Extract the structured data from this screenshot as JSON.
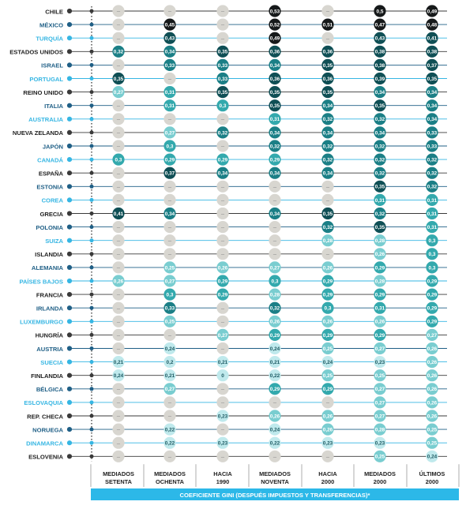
{
  "colors": {
    "dark_blue": "#1f5f86",
    "cyan": "#36b6e3",
    "gray_marker": "#3a3a3a",
    "empty_dot": "#d8d6d0",
    "bin_very_dark": "#16191a",
    "bin_dark": "#0f4f55",
    "bin_mid": "#1b7f86",
    "bin_teal": "#33a9ad",
    "bin_light": "#79cdd0",
    "bin_pale": "#bfe9ec",
    "empty_glyph": "#8a8a8a",
    "caption_bg": "#2cb8e8"
  },
  "chart_data": {
    "type": "dot_matrix",
    "caption": "COEFICIENTE GINI (DESPUÉS IMPUESTOS Y TRANSFERENCIAS)*",
    "empty_symbol": "–",
    "periods": [
      [
        "MEDIADOS",
        "SETENTA"
      ],
      [
        "MEDIADOS",
        "OCHENTA"
      ],
      [
        "HACIA",
        "1990"
      ],
      [
        "MEDIADOS",
        "NOVENTA"
      ],
      [
        "HACIA",
        "2000"
      ],
      [
        "MEDIADOS",
        "2000"
      ],
      [
        "ÚLTIMOS",
        "2000"
      ]
    ],
    "rows": [
      {
        "country": "CHILE",
        "marker": "gray",
        "values": [
          null,
          null,
          null,
          "0,53",
          null,
          "0,5",
          "0,49"
        ]
      },
      {
        "country": "MÉXICO",
        "marker": "dark_blue",
        "values": [
          null,
          "0,45",
          null,
          "0,52",
          "0,51",
          "0,47",
          "0,48"
        ]
      },
      {
        "country": "TURQUÍA",
        "marker": "cyan",
        "values": [
          null,
          "0,43",
          null,
          "0,49",
          null,
          "0,43",
          "0,41"
        ]
      },
      {
        "country": "ESTADOS UNIDOS",
        "marker": "gray",
        "values": [
          "0,32",
          "0,34",
          "0,35",
          "0,36",
          "0,36",
          "0,38",
          "0,38"
        ]
      },
      {
        "country": "ISRAEL",
        "marker": "dark_blue",
        "values": [
          null,
          "0,33",
          "0,33",
          "0,34",
          "0,35",
          "0,38",
          "0,37"
        ]
      },
      {
        "country": "PORTUGAL",
        "marker": "cyan",
        "values": [
          "0,35",
          null,
          "0,33",
          "0,36",
          "0,36",
          "0,39",
          "0,35"
        ]
      },
      {
        "country": "REINO UNIDO",
        "marker": "gray",
        "values": [
          "0,27",
          "0,31",
          "0,35",
          "0,35",
          "0,35",
          "0,34",
          "0,34"
        ]
      },
      {
        "country": "ITALIA",
        "marker": "dark_blue",
        "values": [
          null,
          "0,31",
          "0,3",
          "0,35",
          "0,34",
          "0,35",
          "0,34"
        ]
      },
      {
        "country": "AUSTRALIA",
        "marker": "cyan",
        "values": [
          null,
          null,
          null,
          "0,31",
          "0,32",
          "0,32",
          "0,34"
        ]
      },
      {
        "country": "NUEVA ZELANDA",
        "marker": "gray",
        "values": [
          null,
          "0,27",
          "0,32",
          "0,34",
          "0,34",
          "0,34",
          "0,33"
        ]
      },
      {
        "country": "JAPÓN",
        "marker": "dark_blue",
        "values": [
          null,
          "0,3",
          null,
          "0,32",
          "0,32",
          "0,32",
          "0,33"
        ]
      },
      {
        "country": "CANADÁ",
        "marker": "cyan",
        "values": [
          "0,3",
          "0,29",
          "0,29",
          "0,29",
          "0,32",
          "0,32",
          "0,32"
        ]
      },
      {
        "country": "ESPAÑA",
        "marker": "gray",
        "values": [
          null,
          "0,37",
          "0,34",
          "0,34",
          "0,34",
          "0,32",
          "0,32"
        ]
      },
      {
        "country": "ESTONIA",
        "marker": "dark_blue",
        "values": [
          null,
          null,
          null,
          null,
          null,
          "0,35",
          "0,32"
        ]
      },
      {
        "country": "COREA",
        "marker": "cyan",
        "values": [
          null,
          null,
          null,
          null,
          null,
          "0,31",
          "0,31"
        ]
      },
      {
        "country": "GRECIA",
        "marker": "gray",
        "values": [
          "0,41",
          "0,34",
          null,
          "0,34",
          "0,35",
          "0,32",
          "0,31"
        ]
      },
      {
        "country": "POLONIA",
        "marker": "dark_blue",
        "values": [
          null,
          null,
          null,
          null,
          "0,32",
          "0,35",
          "0,31"
        ]
      },
      {
        "country": "SUIZA",
        "marker": "cyan",
        "values": [
          null,
          null,
          null,
          null,
          "0,28",
          "0,28",
          "0,3"
        ]
      },
      {
        "country": "ISLANDIA",
        "marker": "gray",
        "values": [
          null,
          null,
          null,
          null,
          null,
          "0,26",
          "0,3"
        ]
      },
      {
        "country": "ALEMANIA",
        "marker": "dark_blue",
        "values": [
          null,
          "0,25",
          "0,26",
          "0,27",
          "0,26",
          "0,29",
          "0,3"
        ]
      },
      {
        "country": "PAÍSES BAJOS",
        "marker": "cyan",
        "values": [
          "0,26",
          "0,27",
          "0,29",
          "0,3",
          "0,29",
          "0,28",
          "0,29"
        ]
      },
      {
        "country": "FRANCIA",
        "marker": "gray",
        "values": [
          null,
          "0,3",
          "0,29",
          "0,28",
          "0,29",
          "0,29",
          "0,29"
        ]
      },
      {
        "country": "IRLANDA",
        "marker": "dark_blue",
        "values": [
          null,
          "0,33",
          null,
          "0,32",
          "0,3",
          "0,31",
          "0,29"
        ]
      },
      {
        "country": "LUXEMBURGO",
        "marker": "cyan",
        "values": [
          null,
          "0,25",
          null,
          "0,26",
          "0,26",
          "0,26",
          "0,29"
        ]
      },
      {
        "country": "HUNGRÍA",
        "marker": "gray",
        "values": [
          null,
          null,
          "0,27",
          "0,29",
          "0,29",
          "0,29",
          "0,27"
        ]
      },
      {
        "country": "AUSTRIA",
        "marker": "dark_blue",
        "values": [
          null,
          "0,24",
          null,
          "0,24",
          "0,25",
          "0,27",
          "0,26"
        ]
      },
      {
        "country": "SUECIA",
        "marker": "cyan",
        "values": [
          "0,21",
          "0,2",
          "0,21",
          "0,21",
          "0,24",
          "0,23",
          "0,26"
        ]
      },
      {
        "country": "FINLANDIA",
        "marker": "gray",
        "values": [
          "0,24",
          "0,21",
          "0",
          "0,22",
          "0,25",
          "0,25",
          "0,26"
        ]
      },
      {
        "country": "BÉLGICA",
        "marker": "dark_blue",
        "values": [
          null,
          "0,27",
          null,
          "0,29",
          "0,29",
          "0,27",
          "0,26"
        ]
      },
      {
        "country": "ESLOVAQUIA",
        "marker": "cyan",
        "values": [
          null,
          null,
          null,
          null,
          null,
          "0,27",
          "0,26"
        ]
      },
      {
        "country": "REP. CHECA",
        "marker": "gray",
        "values": [
          null,
          null,
          "0,23",
          "0,26",
          "0,26",
          "0,27",
          "0,26"
        ]
      },
      {
        "country": "NORUEGA",
        "marker": "dark_blue",
        "values": [
          null,
          "0,22",
          null,
          "0,24",
          "0,26",
          "0,28",
          "0,25"
        ]
      },
      {
        "country": "DINAMARCA",
        "marker": "cyan",
        "values": [
          null,
          "0,22",
          "0,23",
          "0,22",
          "0,23",
          "0,23",
          "0,25"
        ]
      },
      {
        "country": "ESLOVENIA",
        "marker": "gray",
        "values": [
          null,
          null,
          null,
          null,
          null,
          "0,25",
          "0,24"
        ]
      }
    ]
  }
}
